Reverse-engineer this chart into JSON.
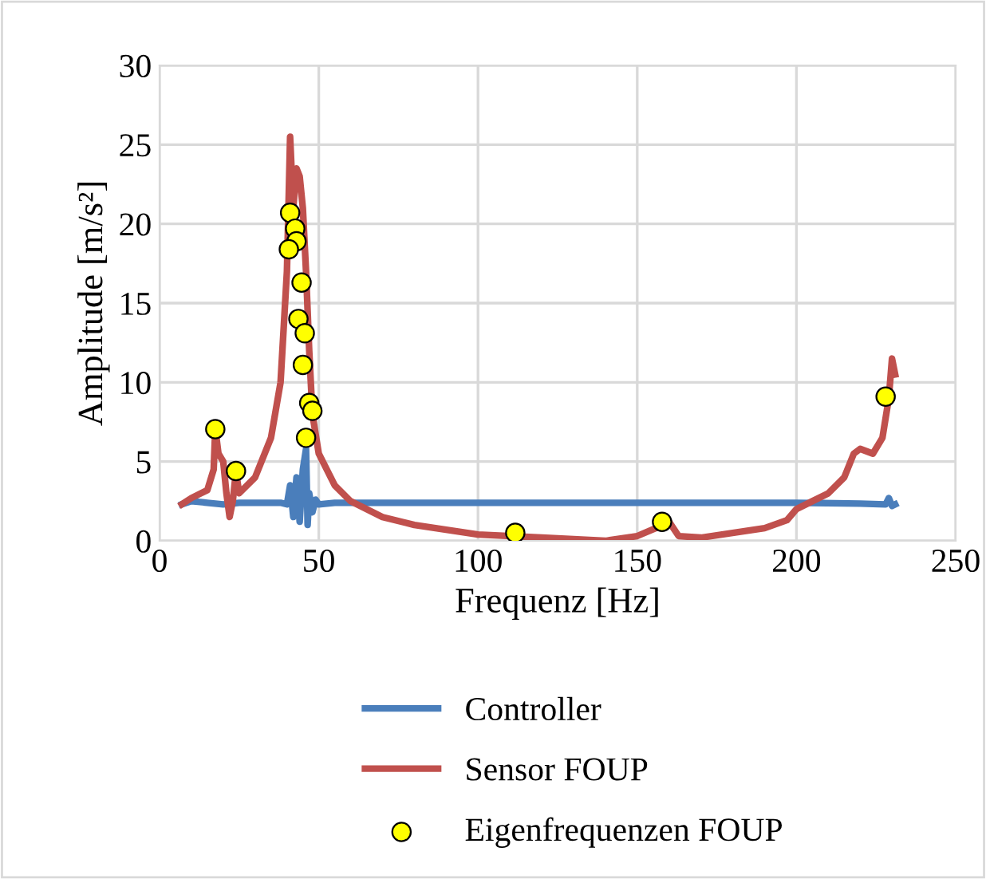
{
  "chart_data": {
    "type": "line",
    "xlabel": "Frequenz [Hz]",
    "ylabel": "Amplitude [m/s²]",
    "xlim": [
      0,
      250
    ],
    "ylim": [
      0,
      30
    ],
    "xticks": [
      0,
      50,
      100,
      150,
      200,
      250
    ],
    "yticks": [
      0,
      5,
      10,
      15,
      20,
      25,
      30
    ],
    "grid": true,
    "legend": "bottom",
    "marker": "none",
    "line_style": "solid",
    "series": [
      {
        "name": "Controller",
        "color": "#4a7ebb",
        "x": [
          7,
          10,
          15,
          20,
          25,
          30,
          35,
          38,
          40,
          41,
          42,
          43,
          44,
          45,
          46,
          46.5,
          47,
          48,
          49,
          50,
          55,
          60,
          100,
          150,
          200,
          220,
          228,
          229,
          230,
          231
        ],
        "values": [
          2.3,
          2.5,
          2.4,
          2.3,
          2.4,
          2.4,
          2.4,
          2.4,
          2.3,
          3.5,
          1.5,
          4,
          1.2,
          4.5,
          5.8,
          1,
          3,
          1.8,
          2.6,
          2.3,
          2.4,
          2.4,
          2.4,
          2.4,
          2.4,
          2.35,
          2.3,
          2.7,
          2.2,
          2.3
        ]
      },
      {
        "name": "Sensor FOUP",
        "color": "#c0504d",
        "x": [
          7,
          10,
          15,
          17,
          17.5,
          18.5,
          20,
          21,
          22,
          23,
          24,
          25,
          30,
          35,
          38,
          40,
          41,
          42,
          43,
          44,
          45,
          46,
          47,
          48,
          50,
          55,
          60,
          70,
          80,
          100,
          120,
          140,
          150,
          157,
          160,
          163,
          170,
          190,
          197,
          200,
          210,
          215,
          218,
          220,
          224,
          227,
          229,
          230,
          231
        ],
        "values": [
          2.3,
          2.7,
          3.2,
          4.5,
          7.1,
          5.5,
          5,
          3,
          1.5,
          2.5,
          4.4,
          3,
          4,
          6.5,
          10,
          17,
          25.5,
          21,
          23.5,
          23,
          21,
          17,
          12,
          8,
          5.5,
          3.5,
          2.5,
          1.5,
          1,
          0.4,
          0.2,
          0,
          0.3,
          0.9,
          1.2,
          0.3,
          0.2,
          0.8,
          1.3,
          2,
          3,
          4,
          5.5,
          5.8,
          5.5,
          6.5,
          9,
          11.5,
          10.5
        ]
      },
      {
        "name": "Eigenfrequenzen FOUP",
        "type": "scatter",
        "color": "#ffff00",
        "marker": "circle",
        "x": [
          17.5,
          24,
          41,
          42.6,
          43,
          40.6,
          44.6,
          43.6,
          45.6,
          45,
          47,
          48,
          46,
          111.7,
          157.8,
          228
        ],
        "values": [
          7.05,
          4.4,
          20.7,
          19.7,
          18.9,
          18.4,
          16.3,
          14.0,
          13.1,
          11.1,
          8.7,
          8.2,
          6.5,
          0.5,
          1.2,
          9.1
        ]
      }
    ]
  }
}
